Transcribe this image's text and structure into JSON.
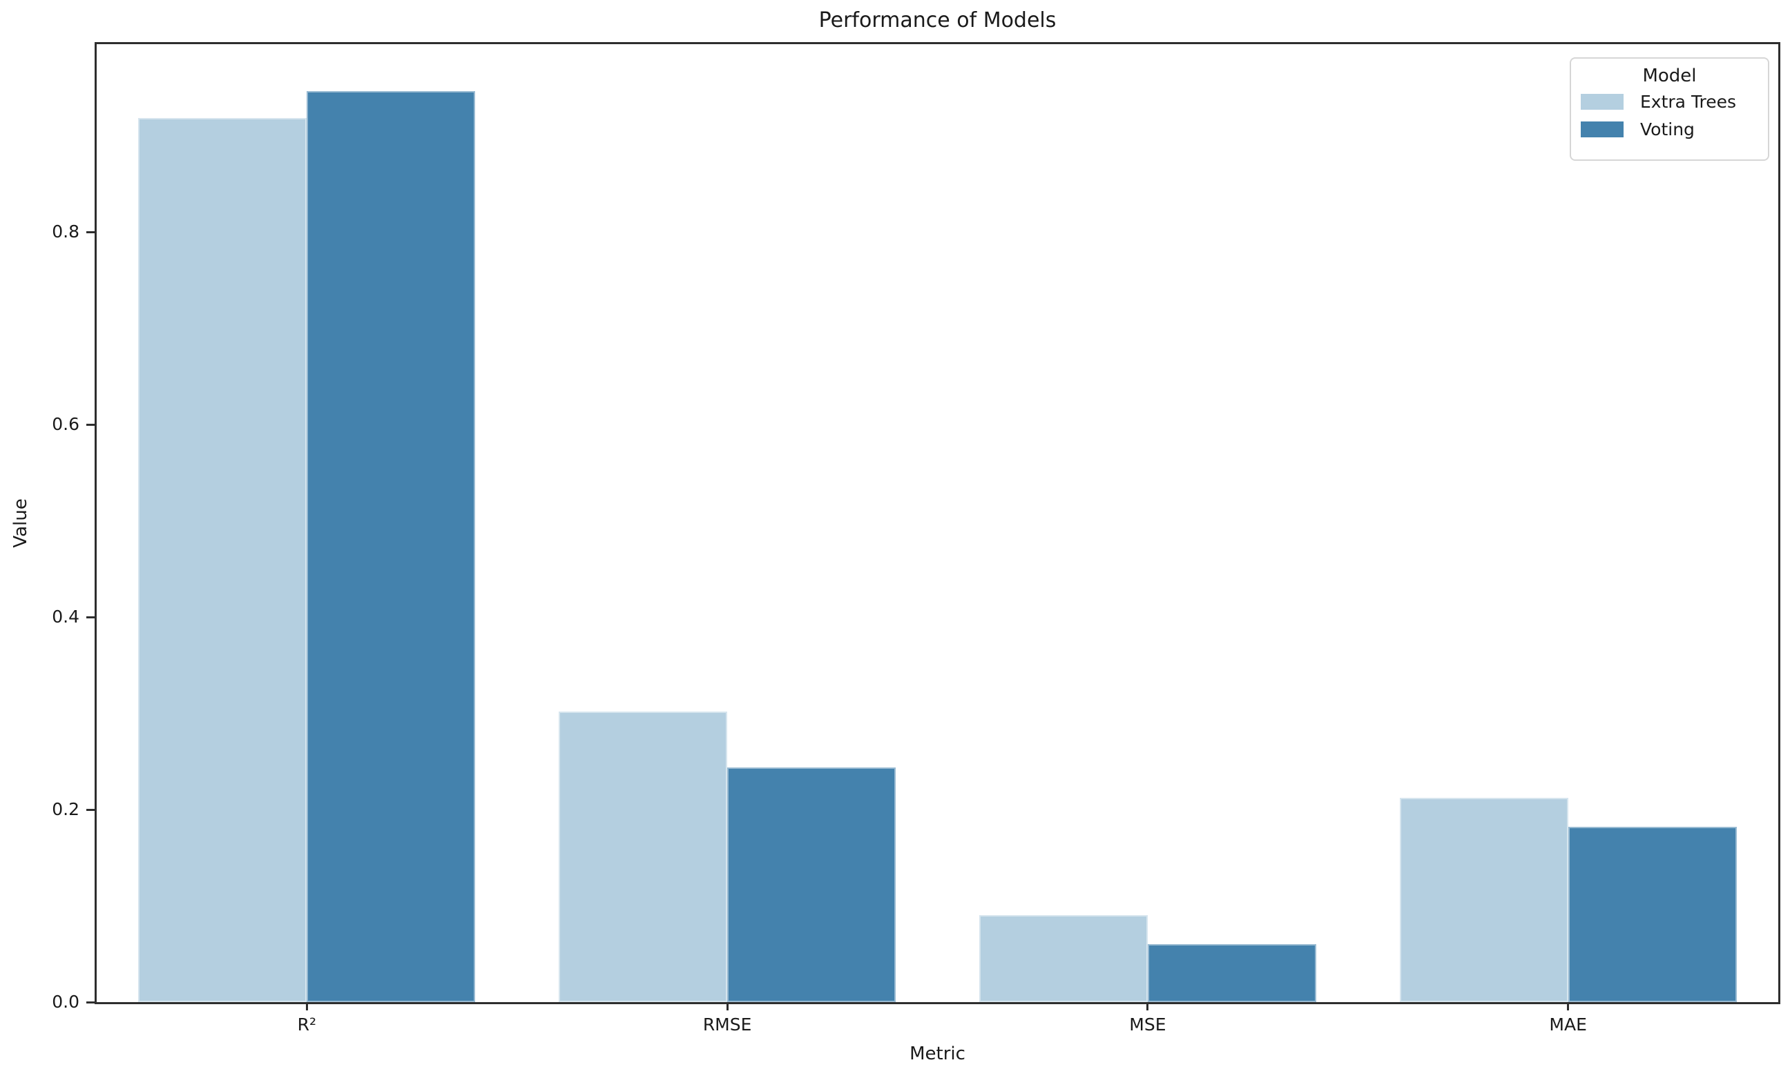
{
  "chart_data": {
    "type": "bar",
    "title": "Performance of Models",
    "xlabel": "Metric",
    "ylabel": "Value",
    "categories": [
      "R²",
      "RMSE",
      "MSE",
      "MAE"
    ],
    "series": [
      {
        "name": "Extra Trees",
        "color": "#b4cfe0",
        "values": [
          0.918,
          0.302,
          0.09,
          0.212
        ]
      },
      {
        "name": "Voting",
        "color": "#4482ad",
        "values": [
          0.946,
          0.244,
          0.06,
          0.182
        ]
      }
    ],
    "ytick_labels": [
      "0.0",
      "0.2",
      "0.4",
      "0.6",
      "0.8"
    ],
    "ylim": [
      0,
      0.995
    ],
    "grid": false,
    "legend_title": "Model",
    "legend_position": "upper right",
    "colors": {
      "spine": "#2e2e2e",
      "text": "#1a1a1a",
      "legend_border": "#d6d6d6",
      "background": "#ffffff"
    }
  }
}
